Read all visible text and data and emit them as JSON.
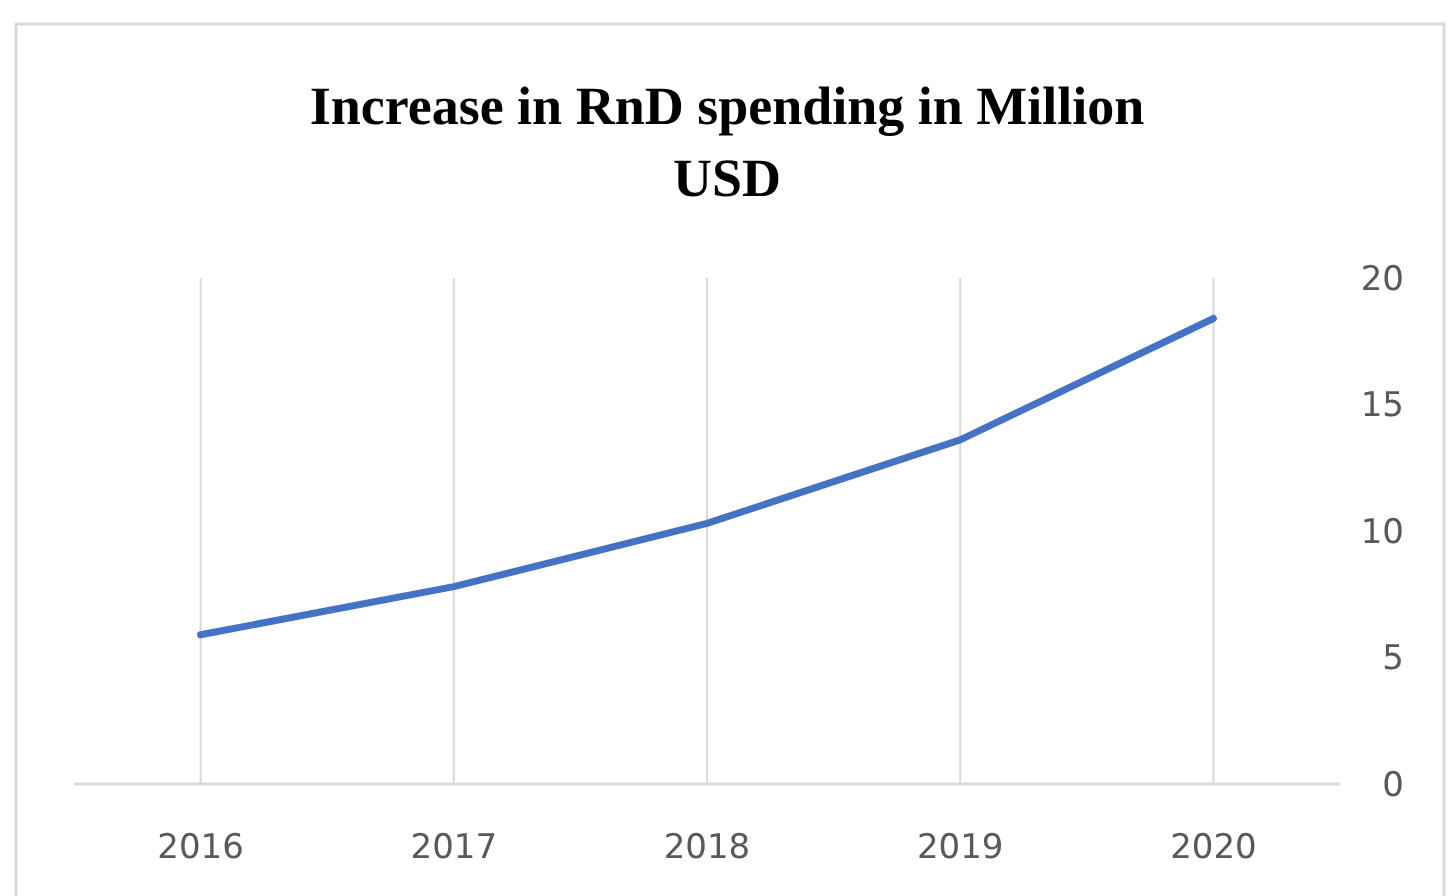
{
  "chart_data": {
    "type": "line",
    "title": "Increase in RnD spending in Million USD",
    "categories": [
      "2016",
      "2017",
      "2018",
      "2019",
      "2020"
    ],
    "series": [
      {
        "color": "#4472c4",
        "values": [
          5.9,
          7.8,
          10.3,
          13.6,
          18.4
        ]
      }
    ],
    "ylim": [
      0,
      20
    ],
    "yticks": [
      0,
      5,
      10,
      15,
      20
    ],
    "grid": "x",
    "marker": "none",
    "line_style": "solid"
  }
}
